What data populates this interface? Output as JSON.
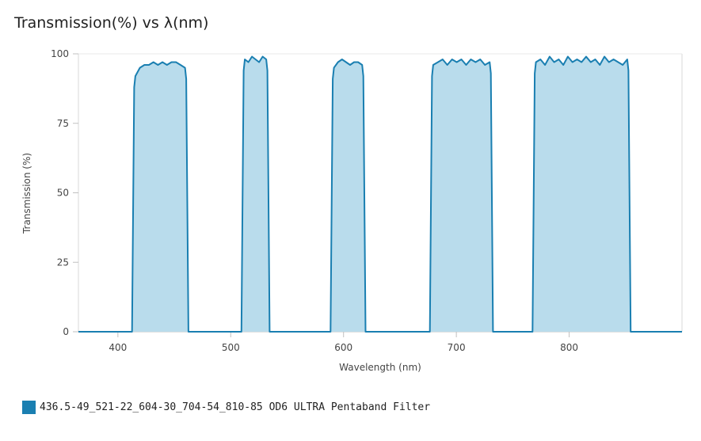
{
  "chart_data": {
    "type": "area",
    "title": "Transmission(%) vs λ(nm)",
    "xlabel": "Wavelength (nm)",
    "ylabel": "Transmission (%)",
    "xlim": [
      365,
      900
    ],
    "ylim": [
      0,
      100
    ],
    "x_ticks": [
      400,
      500,
      600,
      700,
      800
    ],
    "y_ticks": [
      0,
      25,
      50,
      75,
      100
    ],
    "grid": false,
    "legend_position": "bottom-left",
    "line_color": "#1a7fb1",
    "fill_color": "#b9dcec",
    "series": [
      {
        "name": "436.5-49_521-22_604-30_704-54_810-85 OD6 ULTRA Pentaband Filter",
        "bands": [
          {
            "start": 414,
            "end": 461,
            "transmission": [
              92,
              95,
              96,
              96,
              97,
              96,
              97,
              96,
              97,
              97,
              96,
              95
            ]
          },
          {
            "start": 511,
            "end": 533,
            "transmission": [
              98,
              97,
              99,
              98,
              97,
              99,
              98
            ]
          },
          {
            "start": 590,
            "end": 618,
            "transmission": [
              95,
              97,
              98,
              97,
              96,
              97,
              97,
              96
            ]
          },
          {
            "start": 678,
            "end": 731,
            "transmission": [
              96,
              97,
              98,
              96,
              98,
              97,
              98,
              96,
              98,
              97,
              98,
              96,
              97
            ]
          },
          {
            "start": 769,
            "end": 853,
            "transmission": [
              97,
              98,
              96,
              99,
              97,
              98,
              96,
              99,
              97,
              98,
              97,
              99,
              97,
              98,
              96,
              99,
              97,
              98,
              97,
              96,
              98
            ]
          }
        ]
      }
    ]
  }
}
